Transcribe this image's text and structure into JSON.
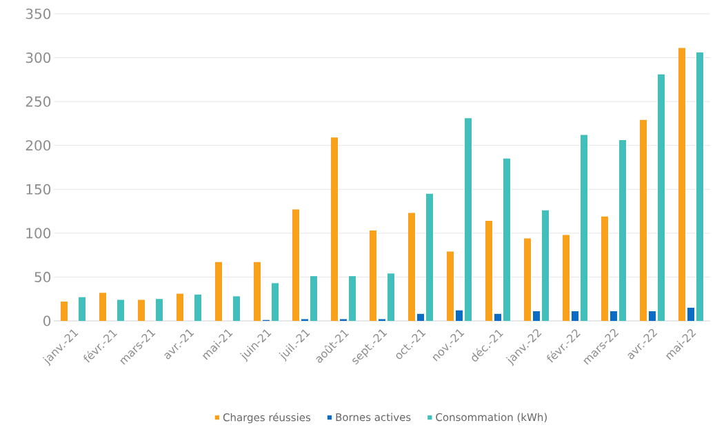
{
  "chart_data": {
    "type": "bar",
    "categories": [
      "janv.-21",
      "févr.-21",
      "mars-21",
      "avr.-21",
      "mai-21",
      "juin-21",
      "juil.-21",
      "août-21",
      "sept.-21",
      "oct.-21",
      "nov.-21",
      "déc.-21",
      "janv.-22",
      "févr.-22",
      "mars-22",
      "avr.-22",
      "mai-22"
    ],
    "series": [
      {
        "name": "Charges réussies",
        "color": "#f9a11b",
        "values": [
          22,
          32,
          24,
          31,
          67,
          67,
          127,
          209,
          103,
          123,
          79,
          114,
          94,
          98,
          119,
          229,
          311
        ]
      },
      {
        "name": "Bornes actives",
        "color": "#0a6cc4",
        "values": [
          0,
          0,
          0,
          0,
          0,
          1,
          2,
          2,
          2,
          8,
          12,
          8,
          11,
          11,
          11,
          11,
          15
        ]
      },
      {
        "name": "Consommation (kWh)",
        "color": "#42bfbb",
        "values": [
          27,
          24,
          25,
          30,
          28,
          43,
          51,
          51,
          54,
          145,
          231,
          185,
          126,
          212,
          206,
          281,
          306
        ]
      }
    ],
    "ylim": [
      0,
      350
    ],
    "yticks": [
      0,
      50,
      100,
      150,
      200,
      250,
      300,
      350
    ],
    "grid": "y",
    "legend": "bottom"
  }
}
